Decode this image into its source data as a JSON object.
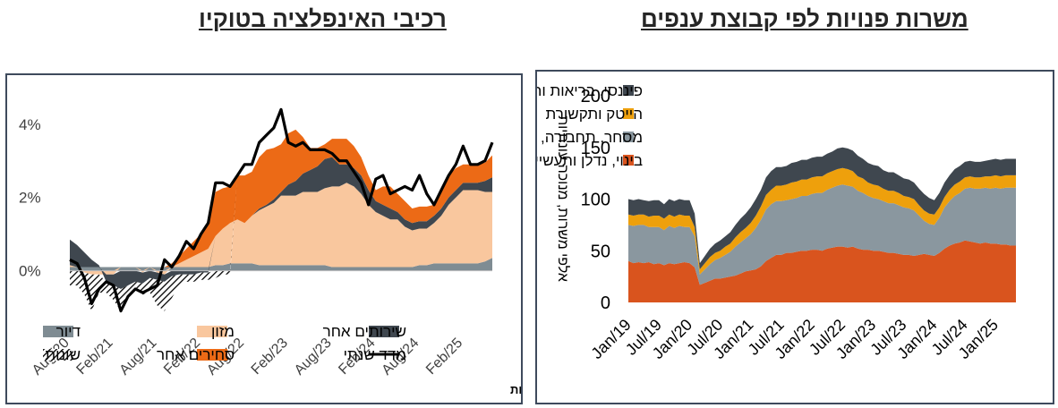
{
  "left_title": "רכיבי האינפלציה בטוקיו",
  "right_title": "משרות פנויות לפי קבוצת ענפים",
  "source": "מקור: בלומברג ועיבודי מזרחי טפחות",
  "colors": {
    "housing": "#7f8c93",
    "food": "#f9c79e",
    "other_services": "#3f474f",
    "other_goods": "#ec6a16",
    "misc": "#000000",
    "index": "#000000",
    "finance": "#3f474f",
    "hitech": "#eea00c",
    "trade": "#8a979f",
    "construction": "#d9541e"
  },
  "chart_data": [
    {
      "type": "area",
      "title": "רכיבי האינפלציה בטוקיו",
      "x_ticks": [
        "Aug/20",
        "Feb/21",
        "Aug/21",
        "Feb/22",
        "Aug/22",
        "Feb/23",
        "Aug/23",
        "Feb/24",
        "Aug/24",
        "Feb/25"
      ],
      "y_ticks": [
        "4%",
        "2%",
        "0%"
      ],
      "ylim": [
        -1.5,
        4.8
      ],
      "x": [
        "2020-08",
        "2020-09",
        "2020-10",
        "2020-11",
        "2020-12",
        "2021-01",
        "2021-02",
        "2021-03",
        "2021-04",
        "2021-05",
        "2021-06",
        "2021-07",
        "2021-08",
        "2021-09",
        "2021-10",
        "2021-11",
        "2021-12",
        "2022-01",
        "2022-02",
        "2022-03",
        "2022-04",
        "2022-05",
        "2022-06",
        "2022-07",
        "2022-08",
        "2022-09",
        "2022-10",
        "2022-11",
        "2022-12",
        "2023-01",
        "2023-02",
        "2023-03",
        "2023-04",
        "2023-05",
        "2023-06",
        "2023-07",
        "2023-08",
        "2023-09",
        "2023-10",
        "2023-11",
        "2023-12",
        "2024-01",
        "2024-02",
        "2024-03",
        "2024-04",
        "2024-05",
        "2024-06",
        "2024-07",
        "2024-08",
        "2024-09",
        "2024-10",
        "2024-11",
        "2024-12",
        "2025-01",
        "2025-02",
        "2025-03",
        "2025-04",
        "2025-05",
        "2025-06"
      ],
      "series": [
        {
          "name": "דיור",
          "values": [
            0.1,
            0.1,
            0.1,
            0.1,
            0.1,
            0.1,
            0.1,
            0.1,
            0.1,
            0.1,
            0.1,
            0.1,
            0.1,
            0.1,
            0.1,
            0.1,
            0.1,
            0.1,
            0.1,
            0.1,
            0.15,
            0.15,
            0.2,
            0.2,
            0.2,
            0.2,
            0.15,
            0.15,
            0.15,
            0.15,
            0.15,
            0.15,
            0.15,
            0.15,
            0.15,
            0.15,
            0.1,
            0.1,
            0.1,
            0.1,
            0.1,
            0.1,
            0.1,
            0.1,
            0.1,
            0.1,
            0.1,
            0.1,
            0.15,
            0.15,
            0.2,
            0.2,
            0.2,
            0.2,
            0.2,
            0.2,
            0.2,
            0.25,
            0.35
          ]
        },
        {
          "name": "מזון",
          "values": [
            0.05,
            0.0,
            -0.05,
            -0.1,
            -0.1,
            -0.1,
            -0.1,
            0.0,
            0.0,
            0.0,
            -0.05,
            0.0,
            -0.05,
            -0.1,
            0.0,
            0.1,
            0.2,
            0.3,
            0.4,
            0.5,
            0.8,
            1.0,
            1.1,
            1.2,
            1.1,
            1.3,
            1.5,
            1.6,
            1.7,
            1.9,
            1.9,
            1.9,
            2.0,
            2.0,
            2.0,
            2.1,
            2.2,
            2.2,
            2.3,
            2.2,
            2.0,
            1.7,
            1.5,
            1.4,
            1.3,
            1.3,
            1.1,
            1.0,
            1.0,
            1.0,
            1.1,
            1.3,
            1.6,
            1.8,
            2.0,
            2.0,
            2.0,
            1.9,
            1.8
          ]
        },
        {
          "name": "שירותים אחר",
          "values": [
            0.7,
            0.6,
            0.4,
            0.2,
            0.05,
            -0.2,
            -0.3,
            -0.5,
            -0.4,
            -0.3,
            -0.3,
            -0.2,
            -0.2,
            -0.2,
            -0.15,
            -0.1,
            -0.1,
            -0.1,
            -0.05,
            -0.05,
            0.0,
            0.0,
            0.0,
            0.0,
            0.0,
            0.0,
            0.05,
            0.05,
            0.1,
            0.1,
            0.3,
            0.4,
            0.5,
            0.6,
            0.7,
            0.8,
            0.8,
            0.6,
            0.5,
            0.5,
            0.5,
            0.4,
            0.3,
            0.3,
            0.3,
            0.2,
            0.2,
            0.2,
            0.2,
            0.2,
            0.2,
            0.2,
            0.2,
            0.2,
            0.2,
            0.2,
            0.2,
            0.3,
            0.4
          ]
        },
        {
          "name": "סחירים אחר",
          "values": [
            0.0,
            0.0,
            0.0,
            0.0,
            0.0,
            0.0,
            0.0,
            0.0,
            0.0,
            0.0,
            0.0,
            0.0,
            0.0,
            0.0,
            0.1,
            0.2,
            0.3,
            0.4,
            0.5,
            0.7,
            1.2,
            1.1,
            1.0,
            1.2,
            1.3,
            1.2,
            1.4,
            1.5,
            1.4,
            1.3,
            1.4,
            1.4,
            1.0,
            0.6,
            0.5,
            0.4,
            0.5,
            0.7,
            0.7,
            0.6,
            0.5,
            0.4,
            0.3,
            0.5,
            0.6,
            0.5,
            0.5,
            0.4,
            0.4,
            0.4,
            0.3,
            0.5,
            0.6,
            0.6,
            0.5,
            0.5,
            0.5,
            0.5,
            0.6
          ]
        },
        {
          "name": "שונות",
          "values": [
            -0.4,
            -0.4,
            -0.6,
            -1.0,
            -0.5,
            -0.3,
            -0.4,
            -0.6,
            -0.3,
            -0.2,
            -0.3,
            -0.4,
            -0.7,
            -0.8,
            -0.6,
            -0.3,
            -0.2,
            -0.2,
            -0.2,
            -0.2,
            -0.2,
            -0.1,
            -0.1,
            0.0,
            0.0,
            0.0,
            0.0,
            0.0,
            0.0,
            0.0,
            0.0,
            0.0,
            0.0,
            0.0,
            0.0,
            0.0,
            0.0,
            0.0,
            0.0,
            0.0,
            0.0,
            0.0,
            0.0,
            0.0,
            0.0,
            0.0,
            0.0,
            0.0,
            0.0,
            0.0,
            0.0,
            0.0,
            0.0,
            0.0,
            0.0,
            0.0,
            0.0,
            0.0,
            0.0
          ]
        },
        {
          "name": "מדד שנתי",
          "values": [
            0.3,
            0.2,
            -0.2,
            -0.9,
            -0.5,
            -0.3,
            -0.4,
            -1.1,
            -0.7,
            -0.5,
            -0.6,
            -0.5,
            -0.4,
            0.3,
            0.1,
            0.4,
            0.8,
            0.6,
            1.0,
            1.3,
            2.4,
            2.4,
            2.3,
            2.6,
            2.9,
            2.9,
            3.5,
            3.7,
            3.9,
            4.4,
            3.5,
            3.4,
            3.5,
            3.3,
            3.3,
            3.3,
            3.2,
            3.0,
            3.0,
            2.7,
            2.4,
            1.8,
            2.5,
            2.6,
            2.1,
            2.2,
            2.3,
            2.2,
            2.6,
            2.1,
            1.8,
            2.2,
            2.6,
            2.9,
            3.4,
            2.9,
            2.9,
            3.0,
            3.5
          ]
        }
      ],
      "legend": [
        {
          "key": "housing",
          "label": "דיור"
        },
        {
          "key": "food",
          "label": "מזון"
        },
        {
          "key": "other_services",
          "label": "שירותים אחר"
        },
        {
          "key": "misc",
          "label": "שונות"
        },
        {
          "key": "other_goods",
          "label": "סחירים אחר"
        },
        {
          "key": "index",
          "label": "מדד שנתי"
        }
      ]
    },
    {
      "type": "area",
      "title": "משרות פנויות לפי קבוצת ענפים",
      "ylabel": "אלפי משרות, מנוכה עונתיות",
      "ylim": [
        0,
        200
      ],
      "y_ticks": [
        0,
        50,
        100,
        150,
        200
      ],
      "x_ticks": [
        "Jan/19",
        "Jul/19",
        "Jan/20",
        "Jul/20",
        "Jan/21",
        "Jul/21",
        "Jan/22",
        "Jul/22",
        "Jan/23",
        "Jul/23",
        "Jan/24",
        "Jul/24",
        "Jan/25"
      ],
      "x": [
        "2019-01",
        "2019-02",
        "2019-03",
        "2019-04",
        "2019-05",
        "2019-06",
        "2019-07",
        "2019-08",
        "2019-09",
        "2019-10",
        "2019-11",
        "2019-12",
        "2020-01",
        "2020-02",
        "2020-03",
        "2020-04",
        "2020-05",
        "2020-06",
        "2020-07",
        "2020-08",
        "2020-09",
        "2020-10",
        "2020-11",
        "2020-12",
        "2021-01",
        "2021-02",
        "2021-03",
        "2021-04",
        "2021-05",
        "2021-06",
        "2021-07",
        "2021-08",
        "2021-09",
        "2021-10",
        "2021-11",
        "2021-12",
        "2022-01",
        "2022-02",
        "2022-03",
        "2022-04",
        "2022-05",
        "2022-06",
        "2022-07",
        "2022-08",
        "2022-09",
        "2022-10",
        "2022-11",
        "2022-12",
        "2023-01",
        "2023-02",
        "2023-03",
        "2023-04",
        "2023-05",
        "2023-06",
        "2023-07",
        "2023-08",
        "2023-09",
        "2023-10",
        "2023-11",
        "2023-12",
        "2024-01",
        "2024-02",
        "2024-03",
        "2024-04",
        "2024-05",
        "2024-06",
        "2024-07",
        "2024-08",
        "2024-09",
        "2024-10",
        "2024-11",
        "2024-12",
        "2025-01",
        "2025-02",
        "2025-03",
        "2025-04",
        "2025-05"
      ],
      "series": [
        {
          "name": "בינוי, נדלן ותעשייה",
          "values": [
            40,
            38,
            39,
            38,
            39,
            37,
            38,
            36,
            38,
            37,
            38,
            39,
            38,
            34,
            17,
            19,
            21,
            23,
            23,
            24,
            25,
            26,
            28,
            30,
            31,
            32,
            35,
            40,
            43,
            46,
            46,
            48,
            48,
            49,
            50,
            50,
            51,
            51,
            50,
            52,
            53,
            54,
            54,
            53,
            54,
            52,
            51,
            51,
            50,
            50,
            49,
            48,
            48,
            47,
            46,
            46,
            45,
            46,
            47,
            46,
            45,
            48,
            52,
            55,
            57,
            58,
            60,
            59,
            58,
            57,
            58,
            57,
            57,
            56,
            56,
            55,
            55
          ]
        },
        {
          "name": "מסחר, תחבורה, מזון ובידור",
          "values": [
            35,
            36,
            36,
            37,
            34,
            36,
            35,
            34,
            36,
            35,
            36,
            34,
            35,
            30,
            10,
            13,
            16,
            18,
            20,
            22,
            24,
            28,
            30,
            32,
            35,
            40,
            45,
            50,
            52,
            52,
            52,
            51,
            52,
            52,
            53,
            53,
            54,
            55,
            56,
            57,
            58,
            59,
            60,
            60,
            58,
            56,
            55,
            52,
            51,
            50,
            49,
            48,
            48,
            47,
            46,
            45,
            44,
            38,
            32,
            30,
            30,
            34,
            40,
            43,
            46,
            48,
            50,
            52,
            52,
            53,
            53,
            53,
            54,
            54,
            55,
            56,
            56
          ]
        },
        {
          "name": "הייטק ותקשורת",
          "values": [
            10,
            10,
            10,
            10,
            10,
            11,
            11,
            11,
            11,
            11,
            11,
            11,
            11,
            9,
            5,
            6,
            7,
            7,
            7,
            8,
            8,
            9,
            10,
            10,
            11,
            12,
            13,
            14,
            14,
            15,
            15,
            15,
            16,
            16,
            16,
            16,
            16,
            16,
            16,
            16,
            16,
            16,
            16,
            16,
            15,
            14,
            14,
            13,
            13,
            13,
            12,
            12,
            12,
            12,
            11,
            11,
            11,
            10,
            10,
            10,
            10,
            10,
            10,
            11,
            11,
            11,
            11,
            11,
            11,
            11,
            11,
            12,
            12,
            12,
            12,
            12,
            12
          ]
        },
        {
          "name": "פיננסי, בריאות וחינוך",
          "values": [
            15,
            15,
            15,
            14,
            15,
            15,
            15,
            14,
            15,
            15,
            15,
            15,
            15,
            13,
            6,
            7,
            8,
            9,
            10,
            10,
            11,
            12,
            13,
            14,
            15,
            16,
            16,
            17,
            18,
            18,
            18,
            18,
            19,
            19,
            19,
            19,
            19,
            19,
            19,
            19,
            19,
            20,
            20,
            20,
            20,
            20,
            19,
            19,
            19,
            19,
            18,
            18,
            18,
            17,
            17,
            17,
            16,
            16,
            16,
            15,
            14,
            14,
            14,
            14,
            15,
            15,
            15,
            15,
            15,
            15,
            15,
            16,
            16,
            16,
            16,
            16,
            16
          ]
        }
      ],
      "legend": [
        {
          "key": "finance",
          "label": "פיננסי, בריאות וחינוך"
        },
        {
          "key": "hitech",
          "label": "הייטק ותקשורת"
        },
        {
          "key": "trade",
          "label": "מסחר, תחבורה, מזון ובידור"
        },
        {
          "key": "construction",
          "label": "בינוי, נדלן ותעשייה"
        }
      ]
    }
  ]
}
